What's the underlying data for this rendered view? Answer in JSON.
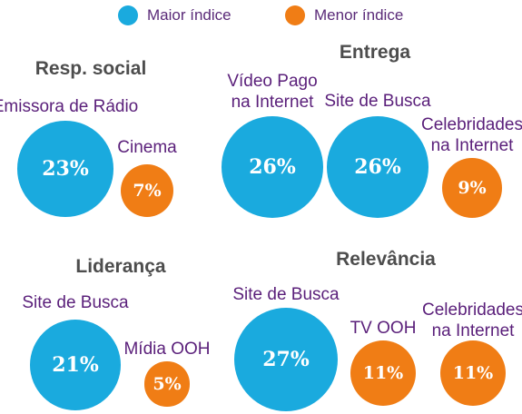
{
  "legend": {
    "max_label": "Maior índice",
    "min_label": "Menor índice",
    "max_color": "#1aaade",
    "min_color": "#f07d15"
  },
  "chart_data": [
    {
      "type": "bubble",
      "title": "Resp. social",
      "points": [
        {
          "label": "Emissora de Rádio",
          "value": 23,
          "display": "23%",
          "group": "max"
        },
        {
          "label": "Cinema",
          "value": 7,
          "display": "7%",
          "group": "min"
        }
      ]
    },
    {
      "type": "bubble",
      "title": "Entrega",
      "points": [
        {
          "label": "Vídeo Pago\nna Internet",
          "value": 26,
          "display": "26%",
          "group": "max"
        },
        {
          "label": "Site de Busca",
          "value": 26,
          "display": "26%",
          "group": "max"
        },
        {
          "label": "Celebridades\nna Internet",
          "value": 9,
          "display": "9%",
          "group": "min"
        }
      ]
    },
    {
      "type": "bubble",
      "title": "Liderança",
      "points": [
        {
          "label": "Site de Busca",
          "value": 21,
          "display": "21%",
          "group": "max"
        },
        {
          "label": "Mídia OOH",
          "value": 5,
          "display": "5%",
          "group": "min"
        }
      ]
    },
    {
      "type": "bubble",
      "title": "Relevância",
      "points": [
        {
          "label": "Site de Busca",
          "value": 27,
          "display": "27%",
          "group": "max"
        },
        {
          "label": "TV OOH",
          "value": 11,
          "display": "11%",
          "group": "min"
        },
        {
          "label": "Celebridades\nna Internet",
          "value": 11,
          "display": "11%",
          "group": "min"
        }
      ]
    }
  ]
}
